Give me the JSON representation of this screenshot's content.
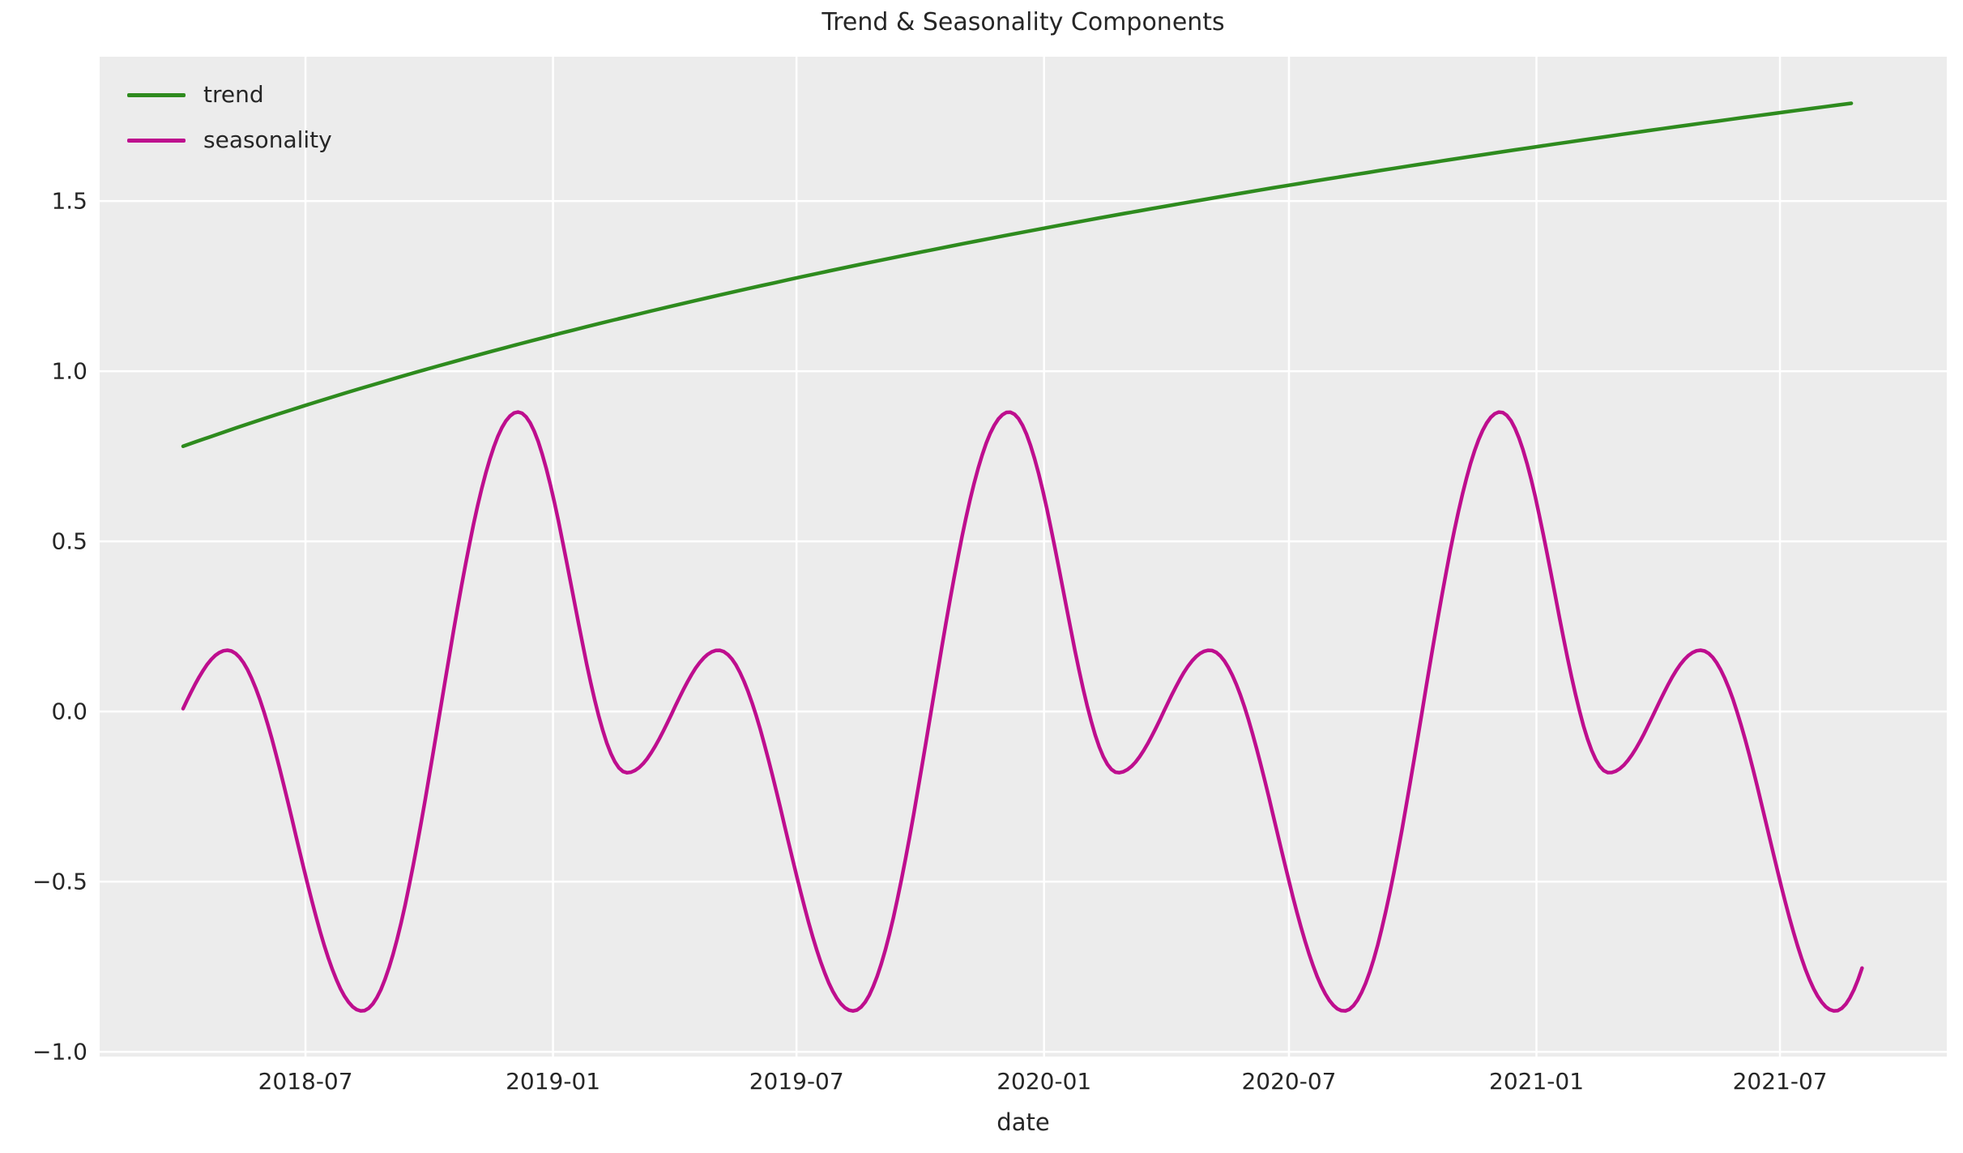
{
  "figure": {
    "title": "Trend & Seasonality Components",
    "xlabel": "date",
    "background_color": "#FFFFFF",
    "plot_background_color": "#ECECEC",
    "grid_color": "#FFFFFF",
    "text_color": "#262626"
  },
  "legend": {
    "position": "upper left",
    "frame": false,
    "items": [
      {
        "label": "trend",
        "color": "#2E8B1E"
      },
      {
        "label": "seasonality",
        "color": "#BE0E8E"
      }
    ]
  },
  "chart_data": {
    "type": "line",
    "title": "Trend & Seasonality Components",
    "xlabel": "date",
    "ylabel": "",
    "grid": true,
    "legend_position": "upper left",
    "x_axis": {
      "unit": "date",
      "data_start_date": "2018-04-01",
      "data_end_date": "2021-09-01",
      "xlim_days_from_start": [
        -62,
        1311
      ],
      "ticks": [
        {
          "label": "2018-07",
          "day": 91
        },
        {
          "label": "2019-01",
          "day": 275
        },
        {
          "label": "2019-07",
          "day": 456
        },
        {
          "label": "2020-01",
          "day": 640
        },
        {
          "label": "2020-07",
          "day": 822
        },
        {
          "label": "2021-01",
          "day": 1006
        },
        {
          "label": "2021-07",
          "day": 1187
        }
      ]
    },
    "y_axis": {
      "ylim": [
        -1.014,
        1.924
      ],
      "ticks": [
        {
          "label": "1.5",
          "value": 1.5
        },
        {
          "label": "1.0",
          "value": 1.0
        },
        {
          "label": "0.5",
          "value": 0.5
        },
        {
          "label": "0.0",
          "value": 0.0
        },
        {
          "label": "−0.5",
          "value": -0.5
        },
        {
          "label": "−1.0",
          "value": -1.0
        }
      ]
    },
    "series": [
      {
        "name": "trend",
        "color": "#2E8B1E",
        "line_width": 4.5,
        "shape": "logarithmic-growth",
        "model": {
          "type": "log",
          "formula": "value = ln(a + b * t), t = days/1249",
          "a": 2.18,
          "b": 3.82,
          "t_domain_days": [
            0,
            1249
          ]
        },
        "key_values": [
          {
            "date": "2018-04-01",
            "day": 0,
            "value": 0.78
          },
          {
            "date": "2018-07-01",
            "day": 91,
            "value": 0.9
          },
          {
            "date": "2019-01-01",
            "day": 275,
            "value": 1.11
          },
          {
            "date": "2019-07-01",
            "day": 456,
            "value": 1.27
          },
          {
            "date": "2020-01-01",
            "day": 640,
            "value": 1.42
          },
          {
            "date": "2020-07-01",
            "day": 822,
            "value": 1.55
          },
          {
            "date": "2021-01-01",
            "day": 1006,
            "value": 1.66
          },
          {
            "date": "2021-07-01",
            "day": 1187,
            "value": 1.76
          },
          {
            "date": "2021-09-01",
            "day": 1249,
            "value": 1.79
          }
        ]
      },
      {
        "name": "seasonality",
        "color": "#BE0E8E",
        "line_width": 4.5,
        "shape": "periodic",
        "period_days": 365,
        "extrema_pattern": {
          "major_peak": {
            "value": 0.88,
            "approx_date": "early December"
          },
          "major_trough": {
            "value": -0.88,
            "approx_date": "mid August"
          },
          "minor_peak": {
            "value": 0.18,
            "approx_date": "early May"
          },
          "minor_trough": {
            "value": -0.18,
            "approx_date": "late February"
          },
          "zero_crossing_rising": "April 1"
        },
        "interpolation": "cosine",
        "draw_domain_days": [
          0,
          1249
        ],
        "keyframes_days_value": [
          [
            -35,
            -0.18
          ],
          [
            33,
            0.18
          ],
          [
            133,
            -0.88
          ],
          [
            249,
            0.88
          ],
          [
            330,
            -0.18
          ],
          [
            398,
            0.18
          ],
          [
            498,
            -0.88
          ],
          [
            614,
            0.88
          ],
          [
            695,
            -0.18
          ],
          [
            763,
            0.18
          ],
          [
            863,
            -0.88
          ],
          [
            979,
            0.88
          ],
          [
            1060,
            -0.18
          ],
          [
            1128,
            0.18
          ],
          [
            1228,
            -0.88
          ],
          [
            1344,
            0.88
          ]
        ]
      }
    ]
  }
}
